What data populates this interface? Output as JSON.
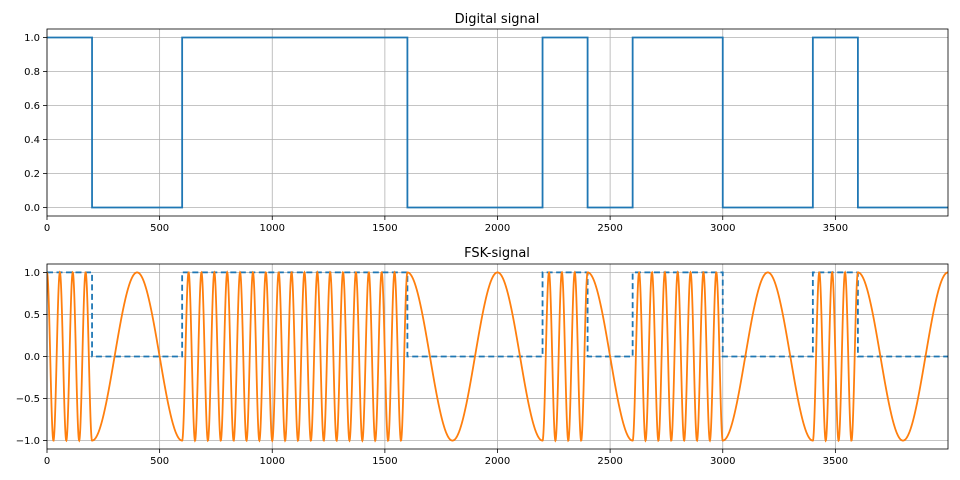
{
  "chart_data": [
    {
      "type": "line",
      "title": "Digital signal",
      "xlabel": "",
      "ylabel": "",
      "xlim": [
        0,
        4000
      ],
      "ylim": [
        -0.05,
        1.05
      ],
      "grid": true,
      "x_ticks": [
        0,
        500,
        1000,
        1500,
        2000,
        2500,
        3000,
        3500
      ],
      "x_tick_labels": [
        "0",
        "500",
        "1000",
        "1500",
        "2000",
        "2500",
        "3000",
        "3500"
      ],
      "y_ticks": [
        0.0,
        0.2,
        0.4,
        0.6,
        0.8,
        1.0
      ],
      "y_tick_labels": [
        "0.0",
        "0.2",
        "0.4",
        "0.6",
        "0.8",
        "1.0"
      ],
      "series": [
        {
          "style": "step",
          "color": "#1f77b4",
          "bits": [
            1,
            0,
            0,
            1,
            1,
            1,
            1,
            1,
            0,
            0,
            0,
            1,
            0,
            1,
            1,
            0,
            0,
            1,
            0,
            0
          ],
          "bit_duration": 200
        }
      ]
    },
    {
      "type": "line",
      "title": "FSK-signal",
      "xlabel": "",
      "ylabel": "",
      "xlim": [
        0,
        4000
      ],
      "ylim": [
        -1.1,
        1.1
      ],
      "grid": true,
      "x_ticks": [
        0,
        500,
        1000,
        1500,
        2000,
        2500,
        3000,
        3500
      ],
      "x_tick_labels": [
        "0",
        "500",
        "1000",
        "1500",
        "2000",
        "2500",
        "3000",
        "3500"
      ],
      "y_ticks": [
        -1.0,
        -0.5,
        0.0,
        0.5,
        1.0
      ],
      "y_tick_labels": [
        "−1.0",
        "−0.5",
        "0.0",
        "0.5",
        "1.0"
      ],
      "series": [
        {
          "style": "dashed-step",
          "color": "#1f77b4",
          "bits": [
            1,
            0,
            0,
            1,
            1,
            1,
            1,
            1,
            0,
            0,
            0,
            1,
            0,
            1,
            1,
            0,
            0,
            1,
            0,
            0
          ],
          "bit_duration": 200
        },
        {
          "style": "sine",
          "color": "#ff7f0e",
          "function": "sin(2*pi*f*t + pi/2)",
          "freq_bit1": 0.0175,
          "freq_bit0": 0.0025,
          "bits": [
            1,
            0,
            0,
            1,
            1,
            1,
            1,
            1,
            0,
            0,
            0,
            1,
            0,
            1,
            1,
            0,
            0,
            1,
            0,
            0
          ],
          "bit_duration": 200
        }
      ]
    }
  ]
}
